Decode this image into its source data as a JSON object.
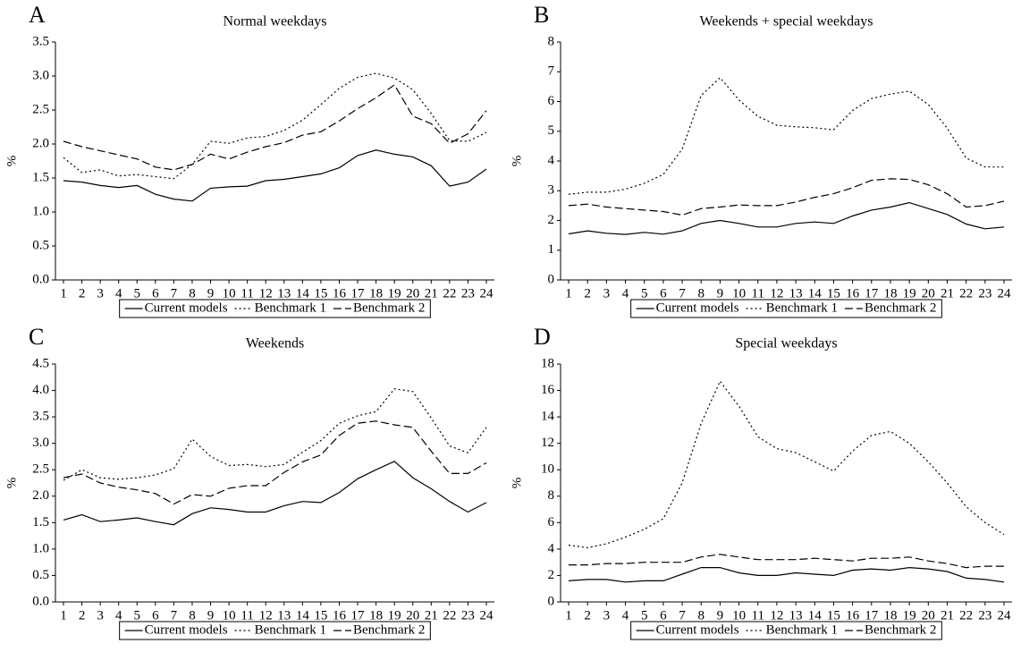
{
  "chart_data": [
    {
      "type": "line",
      "label": "A",
      "title": "Normal weekdays",
      "y_label": "%",
      "categories": [
        "1",
        "2",
        "3",
        "4",
        "5",
        "6",
        "7",
        "8",
        "9",
        "10",
        "11",
        "12",
        "13",
        "14",
        "15",
        "16",
        "17",
        "18",
        "19",
        "20",
        "21",
        "22",
        "23",
        "24"
      ],
      "series": [
        {
          "name": "Current models",
          "color": "#000000",
          "dash": "solid",
          "values": [
            1.46,
            1.44,
            1.39,
            1.36,
            1.39,
            1.26,
            1.19,
            1.16,
            1.35,
            1.37,
            1.38,
            1.46,
            1.48,
            1.52,
            1.56,
            1.65,
            1.83,
            1.91,
            1.85,
            1.81,
            1.68,
            1.38,
            1.44,
            1.63
          ]
        },
        {
          "name": "Benchmark 1",
          "color": "#000000",
          "dash": "dotted",
          "values": [
            1.8,
            1.58,
            1.62,
            1.53,
            1.55,
            1.52,
            1.49,
            1.7,
            2.04,
            2.01,
            2.09,
            2.11,
            2.2,
            2.35,
            2.58,
            2.82,
            2.98,
            3.04,
            2.97,
            2.8,
            2.45,
            2.05,
            2.04,
            2.17
          ]
        },
        {
          "name": "Benchmark 2",
          "color": "#000000",
          "dash": "dashed",
          "values": [
            2.04,
            1.96,
            1.9,
            1.84,
            1.78,
            1.66,
            1.62,
            1.7,
            1.85,
            1.78,
            1.88,
            1.96,
            2.02,
            2.13,
            2.18,
            2.34,
            2.52,
            2.68,
            2.87,
            2.41,
            2.3,
            2.01,
            2.15,
            2.49
          ]
        }
      ],
      "ylim": [
        0,
        3.5
      ],
      "yticks": [
        {
          "value": 0,
          "label": "0.0"
        },
        {
          "value": 0.5,
          "label": "0.5"
        },
        {
          "value": 1,
          "label": "1.0"
        },
        {
          "value": 1.5,
          "label": "1.5"
        },
        {
          "value": 2,
          "label": "2.0"
        },
        {
          "value": 2.5,
          "label": "2.5"
        },
        {
          "value": 3,
          "label": "3.0"
        },
        {
          "value": 3.5,
          "label": "3.5"
        }
      ],
      "grid": false
    },
    {
      "type": "line",
      "label": "B",
      "title": "Weekends + special weekdays",
      "y_label": "%",
      "categories": [
        "1",
        "2",
        "3",
        "4",
        "5",
        "6",
        "7",
        "8",
        "9",
        "10",
        "11",
        "12",
        "13",
        "14",
        "15",
        "16",
        "17",
        "18",
        "19",
        "20",
        "21",
        "22",
        "23",
        "24"
      ],
      "series": [
        {
          "name": "Current models",
          "color": "#000000",
          "dash": "solid",
          "values": [
            1.55,
            1.65,
            1.57,
            1.53,
            1.6,
            1.54,
            1.65,
            1.9,
            2.0,
            1.9,
            1.78,
            1.78,
            1.9,
            1.95,
            1.9,
            2.15,
            2.35,
            2.45,
            2.6,
            2.4,
            2.2,
            1.88,
            1.72,
            1.78
          ]
        },
        {
          "name": "Benchmark 1",
          "color": "#000000",
          "dash": "dotted",
          "values": [
            2.88,
            2.95,
            2.95,
            3.05,
            3.25,
            3.55,
            4.4,
            6.2,
            6.8,
            6.05,
            5.5,
            5.2,
            5.15,
            5.12,
            5.05,
            5.7,
            6.1,
            6.25,
            6.35,
            5.9,
            5.1,
            4.1,
            3.8,
            3.8
          ]
        },
        {
          "name": "Benchmark 2",
          "color": "#000000",
          "dash": "dashed",
          "values": [
            2.5,
            2.55,
            2.45,
            2.4,
            2.35,
            2.3,
            2.18,
            2.4,
            2.45,
            2.52,
            2.5,
            2.5,
            2.62,
            2.78,
            2.9,
            3.1,
            3.35,
            3.4,
            3.38,
            3.2,
            2.9,
            2.45,
            2.5,
            2.65
          ]
        }
      ],
      "ylim": [
        0,
        8
      ],
      "yticks": [
        0,
        1,
        2,
        3,
        4,
        5,
        6,
        7,
        8
      ],
      "grid": false
    },
    {
      "type": "line",
      "label": "C",
      "title": "Weekends",
      "y_label": "%",
      "categories": [
        "1",
        "2",
        "3",
        "4",
        "5",
        "6",
        "7",
        "8",
        "9",
        "10",
        "11",
        "12",
        "13",
        "14",
        "15",
        "16",
        "17",
        "18",
        "19",
        "20",
        "21",
        "22",
        "23",
        "24"
      ],
      "series": [
        {
          "name": "Current models",
          "color": "#000000",
          "dash": "solid",
          "values": [
            1.55,
            1.65,
            1.52,
            1.55,
            1.59,
            1.52,
            1.46,
            1.67,
            1.78,
            1.75,
            1.7,
            1.7,
            1.82,
            1.9,
            1.88,
            2.07,
            2.33,
            2.5,
            2.66,
            2.35,
            2.14,
            1.9,
            1.7,
            1.88
          ]
        },
        {
          "name": "Benchmark 1",
          "color": "#000000",
          "dash": "dotted",
          "values": [
            2.3,
            2.5,
            2.35,
            2.32,
            2.35,
            2.4,
            2.52,
            3.08,
            2.75,
            2.58,
            2.6,
            2.56,
            2.6,
            2.83,
            3.05,
            3.38,
            3.52,
            3.6,
            4.03,
            3.98,
            3.48,
            2.95,
            2.82,
            3.3
          ]
        },
        {
          "name": "Benchmark 2",
          "color": "#000000",
          "dash": "dashed",
          "values": [
            2.35,
            2.42,
            2.25,
            2.17,
            2.12,
            2.05,
            1.85,
            2.03,
            2.0,
            2.15,
            2.2,
            2.2,
            2.45,
            2.65,
            2.78,
            3.15,
            3.38,
            3.42,
            3.35,
            3.3,
            2.85,
            2.43,
            2.43,
            2.63
          ]
        }
      ],
      "ylim": [
        0,
        4.5
      ],
      "yticks": [
        {
          "value": 0,
          "label": "0.0"
        },
        {
          "value": 0.5,
          "label": "0.5"
        },
        {
          "value": 1,
          "label": "1.0"
        },
        {
          "value": 1.5,
          "label": "1.5"
        },
        {
          "value": 2,
          "label": "2.0"
        },
        {
          "value": 2.5,
          "label": "2.5"
        },
        {
          "value": 3,
          "label": "3.0"
        },
        {
          "value": 3.5,
          "label": "3.5"
        },
        {
          "value": 4,
          "label": "4.0"
        },
        {
          "value": 4.5,
          "label": "4.5"
        }
      ],
      "grid": false
    },
    {
      "type": "line",
      "label": "D",
      "title": "Special weekdays",
      "y_label": "%",
      "categories": [
        "1",
        "2",
        "3",
        "4",
        "5",
        "6",
        "7",
        "8",
        "9",
        "10",
        "11",
        "12",
        "13",
        "14",
        "15",
        "16",
        "17",
        "18",
        "19",
        "20",
        "21",
        "22",
        "23",
        "24"
      ],
      "series": [
        {
          "name": "Current models",
          "color": "#000000",
          "dash": "solid",
          "values": [
            1.6,
            1.7,
            1.7,
            1.5,
            1.6,
            1.6,
            2.1,
            2.6,
            2.6,
            2.2,
            2.0,
            2.0,
            2.2,
            2.1,
            2.0,
            2.4,
            2.5,
            2.4,
            2.6,
            2.5,
            2.3,
            1.8,
            1.7,
            1.5
          ]
        },
        {
          "name": "Benchmark 1",
          "color": "#000000",
          "dash": "dotted",
          "values": [
            4.3,
            4.1,
            4.4,
            4.9,
            5.5,
            6.3,
            9.0,
            13.5,
            16.7,
            14.8,
            12.5,
            11.6,
            11.3,
            10.6,
            9.9,
            11.4,
            12.6,
            12.9,
            12.0,
            10.6,
            9.0,
            7.2,
            6.0,
            5.1
          ]
        },
        {
          "name": "Benchmark 2",
          "color": "#000000",
          "dash": "dashed",
          "values": [
            2.8,
            2.8,
            2.9,
            2.9,
            3.0,
            3.0,
            3.0,
            3.4,
            3.6,
            3.4,
            3.2,
            3.2,
            3.2,
            3.3,
            3.2,
            3.1,
            3.3,
            3.3,
            3.4,
            3.1,
            2.9,
            2.6,
            2.7,
            2.7
          ]
        }
      ],
      "ylim": [
        0,
        18
      ],
      "yticks": [
        0,
        2,
        4,
        6,
        8,
        10,
        12,
        14,
        16,
        18
      ],
      "grid": false
    }
  ]
}
